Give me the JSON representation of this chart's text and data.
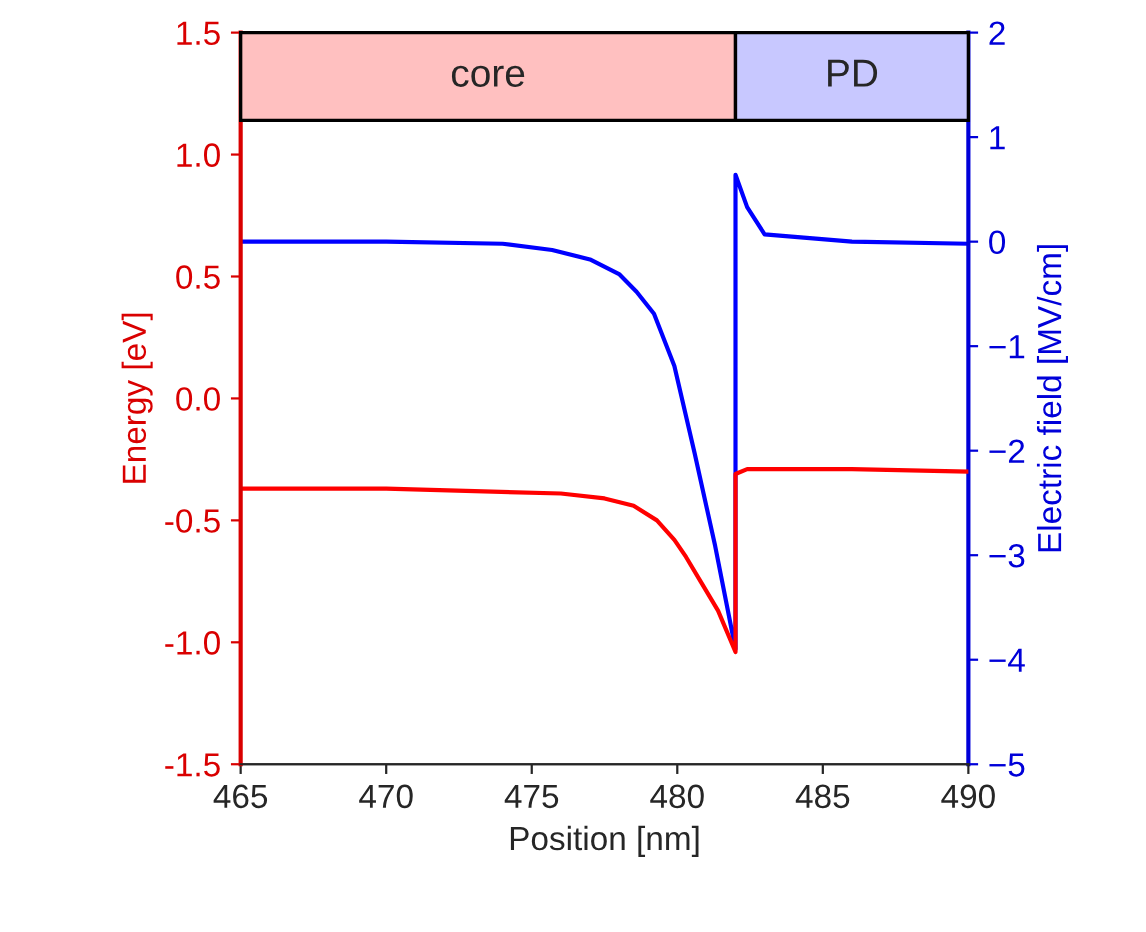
{
  "chart_data": {
    "type": "line",
    "xlabel": "Position [nm]",
    "ylabel": "Energy [eV]",
    "y2label": "Electric field [MV/cm]",
    "xlim": [
      465,
      490
    ],
    "xticks": [
      465,
      470,
      475,
      480,
      485,
      490
    ],
    "ylim": [
      -1.5,
      1.5
    ],
    "yticks": [
      {
        "value": -1.5,
        "label": "-1.5"
      },
      {
        "value": -1.0,
        "label": "-1.0"
      },
      {
        "value": -0.5,
        "label": "-0.5"
      },
      {
        "value": 0.0,
        "label": "0.0"
      },
      {
        "value": 0.5,
        "label": "0.5"
      },
      {
        "value": 1.0,
        "label": "1.0"
      },
      {
        "value": 1.5,
        "label": "1.5"
      }
    ],
    "y2lim": [
      -5,
      2
    ],
    "y2ticks": [
      {
        "value": -5,
        "label": "−5"
      },
      {
        "value": -4,
        "label": "−4"
      },
      {
        "value": -3,
        "label": "−3"
      },
      {
        "value": -2,
        "label": "−2"
      },
      {
        "value": -1,
        "label": "−1"
      },
      0,
      1,
      2
    ],
    "series": [
      {
        "color": "#ff0000",
        "x": [
          465,
          470,
          476,
          477.5,
          478.5,
          479.3,
          479.9,
          480.3,
          480.8,
          481.4,
          482,
          482,
          482.4,
          486,
          490
        ],
        "values": [
          -0.37,
          -0.37,
          -0.39,
          -0.41,
          -0.44,
          -0.5,
          -0.58,
          -0.65,
          -0.75,
          -0.87,
          -1.04,
          -0.31,
          -0.29,
          -0.29,
          -0.3
        ]
      },
      {
        "color": "#0000ff",
        "axis": "y2",
        "x": [
          465,
          470,
          474,
          475.7,
          477.0,
          478.0,
          478.6,
          479.2,
          479.9,
          480.6,
          481.3,
          482,
          482,
          482.4,
          483.0,
          486,
          490
        ],
        "values": [
          0,
          0,
          -0.02,
          -0.08,
          -0.17,
          -0.31,
          -0.48,
          -0.69,
          -1.19,
          -2.03,
          -2.91,
          -3.9,
          0.64,
          0.33,
          0.07,
          0.0,
          -0.02
        ]
      }
    ],
    "bands": [
      {
        "axis": "x",
        "from": 465,
        "to": 482,
        "label": "core",
        "color": "#ffc0c0"
      },
      {
        "axis": "x",
        "from": 482,
        "to": 490,
        "label": "PD",
        "color": "#c8c8ff"
      }
    ],
    "grid": false,
    "marker": "none",
    "line_style": "solid"
  }
}
